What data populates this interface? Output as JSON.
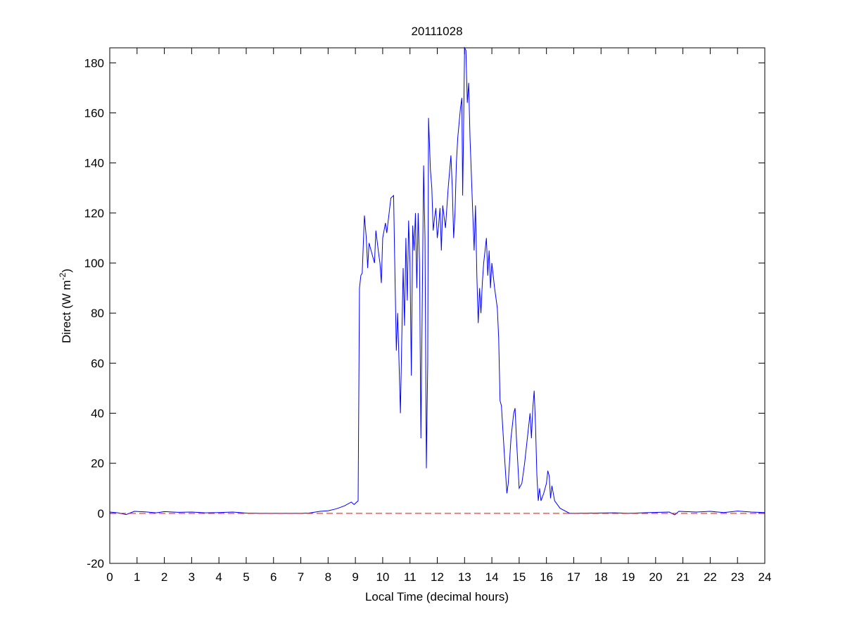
{
  "chart_data": {
    "type": "line",
    "title": "20111028",
    "x_label": "Local Time (decimal hours)",
    "y_label_parts": [
      "Direct (W m",
      "-2",
      ")"
    ],
    "xlim": [
      0,
      24
    ],
    "xticks": [
      0,
      1,
      2,
      3,
      4,
      5,
      6,
      7,
      8,
      9,
      10,
      11,
      12,
      13,
      14,
      15,
      16,
      17,
      18,
      19,
      20,
      21,
      22,
      23,
      24
    ],
    "ylim": [
      -20,
      186
    ],
    "yticks": [
      -20,
      0,
      20,
      40,
      60,
      80,
      100,
      120,
      140,
      160,
      180
    ],
    "reference_line": {
      "value": 0,
      "color": "#ff0000",
      "style": "dashed"
    },
    "series": [
      {
        "color": "#0000ff",
        "x": [
          0,
          0.3,
          0.6,
          0.9,
          1.3,
          1.7,
          2.0,
          2.5,
          3,
          3.5,
          4,
          4.5,
          5,
          5.5,
          6,
          7,
          7.3,
          7.7,
          8.0,
          8.3,
          8.6,
          8.85,
          8.95,
          9.0,
          9.1,
          9.15,
          9.2,
          9.25,
          9.33,
          9.4,
          9.45,
          9.5,
          9.6,
          9.7,
          9.75,
          9.85,
          9.9,
          9.95,
          10.0,
          10.1,
          10.15,
          10.3,
          10.4,
          10.45,
          10.5,
          10.55,
          10.65,
          10.7,
          10.75,
          10.8,
          10.85,
          10.9,
          10.95,
          11.0,
          11.05,
          11.1,
          11.15,
          11.2,
          11.25,
          11.3,
          11.35,
          11.4,
          11.5,
          11.55,
          11.6,
          11.65,
          11.68,
          11.75,
          11.8,
          11.85,
          11.9,
          11.95,
          12.0,
          12.05,
          12.1,
          12.15,
          12.2,
          12.3,
          12.4,
          12.5,
          12.55,
          12.6,
          12.65,
          12.7,
          12.75,
          12.85,
          12.9,
          12.93,
          12.96,
          13.0,
          13.05,
          13.1,
          13.15,
          13.2,
          13.3,
          13.35,
          13.4,
          13.45,
          13.5,
          13.55,
          13.6,
          13.65,
          13.7,
          13.8,
          13.85,
          13.9,
          13.95,
          14.0,
          14.1,
          14.2,
          14.25,
          14.3,
          14.35,
          14.45,
          14.55,
          14.6,
          14.7,
          14.8,
          14.85,
          14.9,
          15.0,
          15.1,
          15.2,
          15.3,
          15.4,
          15.45,
          15.5,
          15.55,
          15.6,
          15.65,
          15.7,
          15.75,
          15.8,
          15.9,
          16.0,
          16.05,
          16.1,
          16.15,
          16.2,
          16.3,
          16.5,
          16.85,
          17.0,
          18.5,
          19,
          19.8,
          20.5,
          20.7,
          20.85,
          21.5,
          22,
          22.5,
          23,
          23.5,
          24
        ],
        "values": [
          0.5,
          0.2,
          -0.5,
          0.8,
          0.6,
          0.2,
          0.7,
          0.4,
          0.5,
          0.2,
          0.3,
          0.5,
          0.1,
          0,
          0,
          0,
          0.1,
          0.8,
          1,
          1.8,
          3,
          4.5,
          3.5,
          4,
          5,
          90,
          95,
          96,
          119,
          110,
          98,
          108,
          104,
          100,
          113,
          104,
          100,
          92,
          110,
          116,
          112,
          126,
          127,
          95,
          65,
          80,
          40,
          70,
          98,
          75,
          110,
          85,
          117,
          100,
          55,
          115,
          105,
          120,
          90,
          120,
          100,
          30,
          139,
          110,
          18,
          60,
          158,
          137,
          130,
          113,
          118,
          122,
          110,
          115,
          122,
          105,
          123,
          114,
          130,
          143,
          130,
          110,
          120,
          140,
          150,
          162,
          166,
          127,
          150,
          186,
          185,
          164,
          172,
          150,
          120,
          105,
          123,
          95,
          76,
          90,
          80,
          92,
          100,
          110,
          95,
          105,
          90,
          100,
          90,
          82,
          70,
          45,
          43,
          25,
          8,
          12,
          30,
          40,
          42,
          30,
          10,
          12,
          20,
          30,
          40,
          30,
          42,
          49,
          35,
          15,
          5,
          10,
          5,
          8,
          12,
          17,
          15,
          6,
          11,
          5,
          2,
          0,
          0,
          0.2,
          0,
          0.3,
          0.5,
          -0.6,
          0.8,
          0.5,
          0.8,
          0.3,
          0.9,
          0.5,
          0.3
        ]
      }
    ]
  }
}
